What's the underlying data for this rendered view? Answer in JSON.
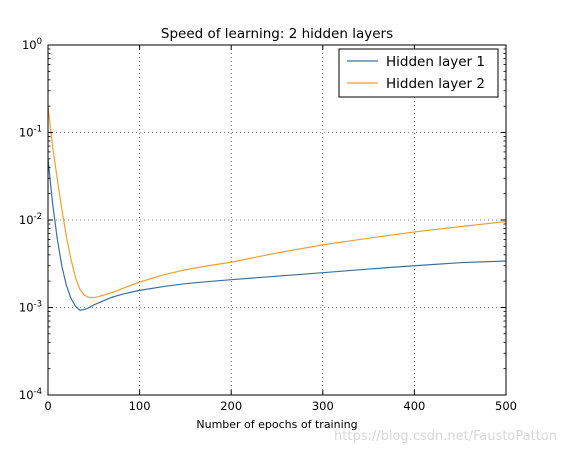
{
  "chart_data": {
    "type": "line",
    "title": "Speed of learning: 2 hidden layers",
    "xlabel": "Number of epochs of training",
    "ylabel": "",
    "xlim": [
      0,
      500
    ],
    "ylim": [
      0.0001,
      1
    ],
    "yscale": "log",
    "grid": true,
    "legend_position": "top-right",
    "x_ticks": [
      0,
      100,
      200,
      300,
      400,
      500
    ],
    "y_ticks": [
      {
        "value": 0.0001,
        "base": "10",
        "exp": "-4"
      },
      {
        "value": 0.001,
        "base": "10",
        "exp": "-3"
      },
      {
        "value": 0.01,
        "base": "10",
        "exp": "-2"
      },
      {
        "value": 0.1,
        "base": "10",
        "exp": "-1"
      },
      {
        "value": 1,
        "base": "10",
        "exp": "0"
      }
    ],
    "series": [
      {
        "name": "Hidden layer 1",
        "color": "#3a6fa6",
        "x": [
          0,
          5,
          10,
          15,
          20,
          25,
          30,
          35,
          40,
          45,
          50,
          60,
          70,
          80,
          100,
          125,
          150,
          175,
          200,
          250,
          300,
          350,
          400,
          450,
          500
        ],
        "y": [
          0.05,
          0.0155,
          0.0062,
          0.003,
          0.0018,
          0.00128,
          0.00103,
          0.00093,
          0.00095,
          0.001,
          0.00107,
          0.00119,
          0.00131,
          0.00141,
          0.00157,
          0.00173,
          0.00187,
          0.00198,
          0.00208,
          0.00228,
          0.0025,
          0.00275,
          0.003,
          0.00325,
          0.0034
        ]
      },
      {
        "name": "Hidden layer 2",
        "color": "#f0a030",
        "x": [
          0,
          5,
          10,
          15,
          20,
          25,
          30,
          35,
          40,
          45,
          50,
          55,
          60,
          70,
          80,
          100,
          125,
          150,
          175,
          200,
          250,
          300,
          350,
          400,
          450,
          500
        ],
        "y": [
          0.2,
          0.07,
          0.03,
          0.0135,
          0.0065,
          0.0036,
          0.0022,
          0.0016,
          0.00138,
          0.0013,
          0.0013,
          0.00133,
          0.00138,
          0.00148,
          0.00163,
          0.00195,
          0.00235,
          0.0027,
          0.003,
          0.0033,
          0.0042,
          0.0052,
          0.0062,
          0.0073,
          0.0084,
          0.0096
        ]
      }
    ]
  },
  "watermark": "https://blog.csdn.net/FaustoPatton"
}
